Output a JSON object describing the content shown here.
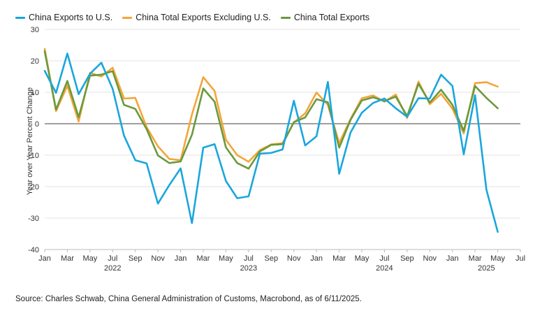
{
  "chart_data": {
    "type": "line",
    "title": "",
    "ylabel": "Year over Year Percent Change",
    "xlabel": "",
    "ylim": [
      -40,
      30
    ],
    "yticks": [
      -40,
      -30,
      -20,
      -10,
      0,
      10,
      20,
      30
    ],
    "grid": "horizontal",
    "legend_position": "top-left",
    "x_start": "2022-01",
    "x_end": "2025-07",
    "month_tick_labels": [
      "Jan",
      "Mar",
      "May",
      "Jul",
      "Sep",
      "Nov",
      "Jan",
      "Mar",
      "May",
      "Jul",
      "Sep",
      "Nov",
      "Jan",
      "Mar",
      "May",
      "Jul",
      "Sep",
      "Nov",
      "Jan",
      "Mar",
      "May",
      "Jul"
    ],
    "year_labels": [
      "2022",
      "2023",
      "2024",
      "2025"
    ],
    "x": [
      "2022-01",
      "2022-02",
      "2022-03",
      "2022-04",
      "2022-05",
      "2022-06",
      "2022-07",
      "2022-08",
      "2022-09",
      "2022-10",
      "2022-11",
      "2022-12",
      "2023-01",
      "2023-02",
      "2023-03",
      "2023-04",
      "2023-05",
      "2023-06",
      "2023-07",
      "2023-08",
      "2023-09",
      "2023-10",
      "2023-11",
      "2023-12",
      "2024-01",
      "2024-02",
      "2024-03",
      "2024-04",
      "2024-05",
      "2024-06",
      "2024-07",
      "2024-08",
      "2024-09",
      "2024-10",
      "2024-11",
      "2024-12",
      "2025-01",
      "2025-02",
      "2025-03",
      "2025-04",
      "2025-05",
      "2025-06"
    ],
    "series": [
      {
        "name": "China Exports to U.S.",
        "color": "#1aa6dc",
        "values": [
          16.8,
          9.8,
          22.3,
          9.4,
          15.9,
          19.4,
          11.1,
          -3.8,
          -11.6,
          -12.6,
          -25.4,
          -19.5,
          -14.2,
          -31.6,
          -7.6,
          -6.5,
          -18.2,
          -23.7,
          -23.1,
          -9.5,
          -9.3,
          -8.2,
          7.3,
          -6.9,
          -4.0,
          13.3,
          -15.9,
          -2.8,
          3.5,
          6.6,
          8.0,
          4.9,
          2.2,
          8.1,
          8.0,
          15.6,
          12.0,
          -9.7,
          9.1,
          -21.0,
          -34.4,
          null
        ]
      },
      {
        "name": "China Total Exports Excluding U.S.",
        "color": "#f4a53a",
        "values": [
          23.8,
          4.0,
          12.1,
          0.7,
          16.2,
          15.0,
          17.8,
          8.0,
          8.2,
          -1.1,
          -7.2,
          -11.2,
          -11.6,
          2.9,
          14.8,
          10.4,
          -5.1,
          -10.0,
          -12.1,
          -8.4,
          -6.6,
          -6.2,
          0.4,
          3.3,
          9.9,
          6.0,
          -6.2,
          1.5,
          8.1,
          9.0,
          7.0,
          9.3,
          1.8,
          13.4,
          6.2,
          9.5,
          4.8,
          -3.1,
          12.9,
          13.2,
          11.8,
          null
        ]
      },
      {
        "name": "China Total Exports",
        "color": "#6a9a3c",
        "values": [
          23.0,
          4.5,
          13.6,
          2.1,
          15.3,
          15.6,
          16.7,
          6.0,
          4.7,
          -1.7,
          -10.1,
          -12.5,
          -12.0,
          -3.5,
          11.2,
          7.0,
          -7.5,
          -12.5,
          -14.3,
          -8.8,
          -6.7,
          -6.5,
          0.5,
          2.0,
          7.8,
          6.8,
          -7.6,
          1.2,
          7.4,
          8.4,
          7.2,
          8.6,
          2.4,
          12.7,
          6.7,
          10.8,
          6.0,
          -2.3,
          12.0,
          8.2,
          4.9,
          null
        ]
      }
    ]
  },
  "source_note": "Source: Charles Schwab, China General Administration of Customs, Macrobond, as of 6/11/2025."
}
